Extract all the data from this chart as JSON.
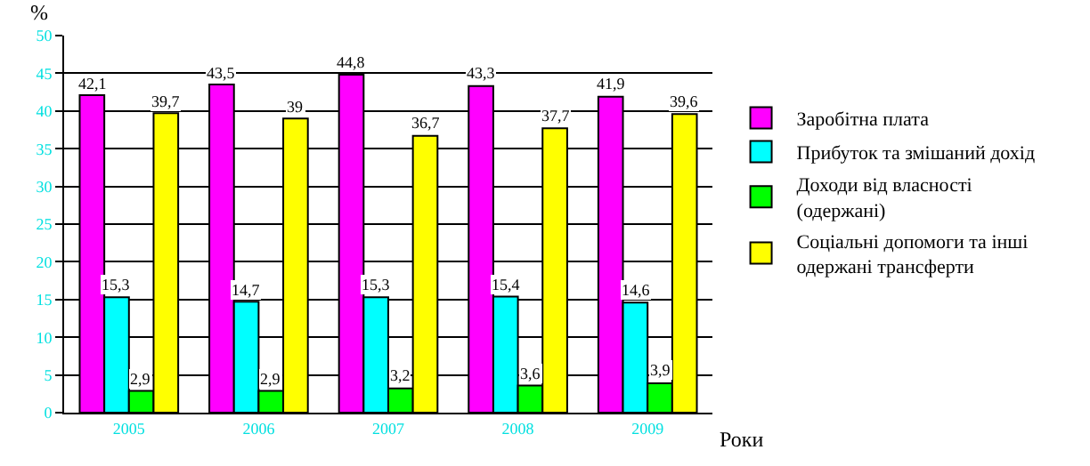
{
  "chart_data": {
    "type": "bar",
    "xlabel": "Роки",
    "ylabel": "%",
    "categories": [
      "2005",
      "2006",
      "2007",
      "2008",
      "2009"
    ],
    "series": [
      {
        "name": "Заробітна плата",
        "color": "#ff00ff",
        "values": [
          42.1,
          43.5,
          44.8,
          43.3,
          41.9
        ],
        "value_labels": [
          "42,1",
          "43,5",
          "44,8",
          "43,3",
          "41,9"
        ]
      },
      {
        "name": "Прибуток та змішаний дохід",
        "color": "#00ffff",
        "values": [
          15.3,
          14.7,
          15.3,
          15.4,
          14.6
        ],
        "value_labels": [
          "15,3",
          "14,7",
          "15,3",
          "15,4",
          "14,6"
        ]
      },
      {
        "name": "Доходи від власності (одержані)",
        "color": "#00ff00",
        "values": [
          2.9,
          2.9,
          3.2,
          3.6,
          3.9
        ],
        "value_labels": [
          "2,9",
          "2,9",
          "3,2",
          "3,6",
          "3,9"
        ]
      },
      {
        "name": "Соціальні допомоги та інші одержані трансферти",
        "color": "#ffff00",
        "values": [
          39.7,
          39,
          36.7,
          37.7,
          39.6
        ],
        "value_labels": [
          "39,7",
          "39",
          "36,7",
          "37,7",
          "39,6"
        ]
      }
    ],
    "ylim": [
      0,
      50
    ],
    "yticks": [
      0,
      5,
      10,
      15,
      20,
      25,
      30,
      35,
      40,
      45,
      50
    ],
    "grid": "y",
    "legend": "right"
  }
}
